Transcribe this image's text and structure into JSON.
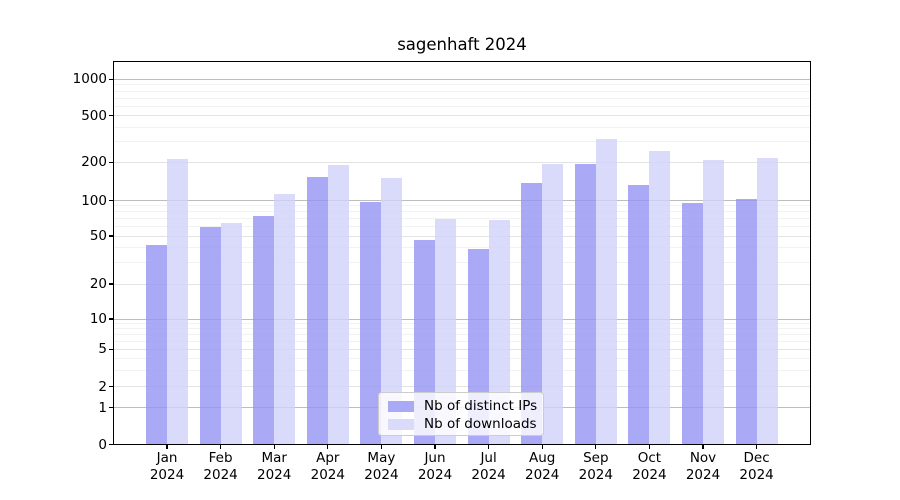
{
  "title": "sagenhaft 2024",
  "chart_data": {
    "type": "bar",
    "title": "sagenhaft 2024",
    "categories": [
      "Jan",
      "Feb",
      "Mar",
      "Apr",
      "May",
      "Jun",
      "Jul",
      "Aug",
      "Sep",
      "Oct",
      "Nov",
      "Dec"
    ],
    "x_year": "2024",
    "series": [
      {
        "name": "Nb of distinct IPs",
        "color": "#a9a9f6",
        "values": [
          42,
          60,
          74,
          152,
          97,
          46,
          39,
          138,
          195,
          132,
          95,
          102
        ]
      },
      {
        "name": "Nb of downloads",
        "color": "#dadafb",
        "values": [
          215,
          65,
          112,
          190,
          150,
          70,
          68,
          195,
          315,
          250,
          210,
          218
        ]
      }
    ],
    "y_ticks": [
      0,
      1,
      2,
      5,
      10,
      20,
      50,
      100,
      200,
      500,
      1000
    ],
    "y_scale": "symlog",
    "ylim": [
      0,
      1400
    ],
    "grid": true,
    "legend_position": "lower center"
  },
  "colors": {
    "grid_decade": "#bdbdbd",
    "grid_labeled": "#e3e3e3",
    "grid_minor": "#f2f2f2",
    "spine": "#000000",
    "text": "#000000"
  }
}
